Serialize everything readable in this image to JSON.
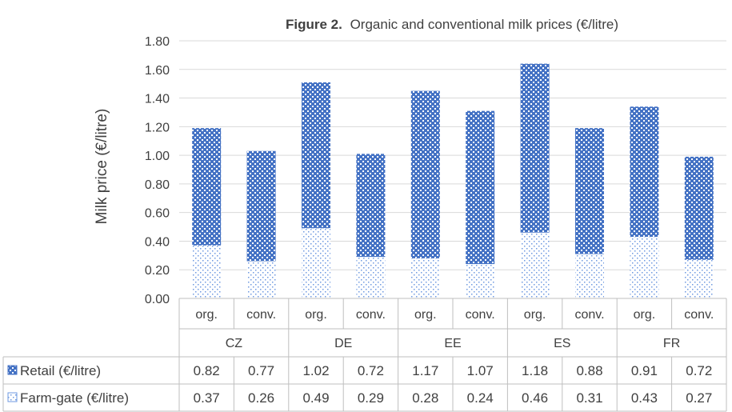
{
  "chart_data": {
    "type": "bar",
    "stacked": true,
    "title_prefix": "Figure 2.",
    "title": "Organic and conventional milk prices (€/litre)",
    "ylabel": "Milk price (€/litre)",
    "xlabel": "",
    "ylim": [
      0,
      1.8
    ],
    "yticks": [
      "0.00",
      "0.20",
      "0.40",
      "0.60",
      "0.80",
      "1.00",
      "1.20",
      "1.40",
      "1.60",
      "1.80"
    ],
    "groups": [
      "CZ",
      "DE",
      "EE",
      "ES",
      "FR"
    ],
    "categories": [
      "org.",
      "conv.",
      "org.",
      "conv.",
      "org.",
      "conv.",
      "org.",
      "conv.",
      "org.",
      "conv."
    ],
    "series": [
      {
        "name": "Farm-gate (€/litre)",
        "color": "#5b8fd6",
        "pattern": "dots",
        "values": [
          0.37,
          0.26,
          0.49,
          0.29,
          0.28,
          0.24,
          0.46,
          0.31,
          0.43,
          0.27
        ],
        "labels": [
          "0.37",
          "0.26",
          "0.49",
          "0.29",
          "0.28",
          "0.24",
          "0.46",
          "0.31",
          "0.43",
          "0.27"
        ]
      },
      {
        "name": "Retail (€/litre)",
        "color": "#4472c4",
        "pattern": "checker",
        "values": [
          0.82,
          0.77,
          1.02,
          0.72,
          1.17,
          1.07,
          1.18,
          0.88,
          0.91,
          0.72
        ],
        "labels": [
          "0.82",
          "0.77",
          "1.02",
          "0.72",
          "1.17",
          "1.07",
          "1.18",
          "0.88",
          "0.91",
          "0.72"
        ]
      }
    ],
    "grid": true,
    "legend": "data-table"
  }
}
